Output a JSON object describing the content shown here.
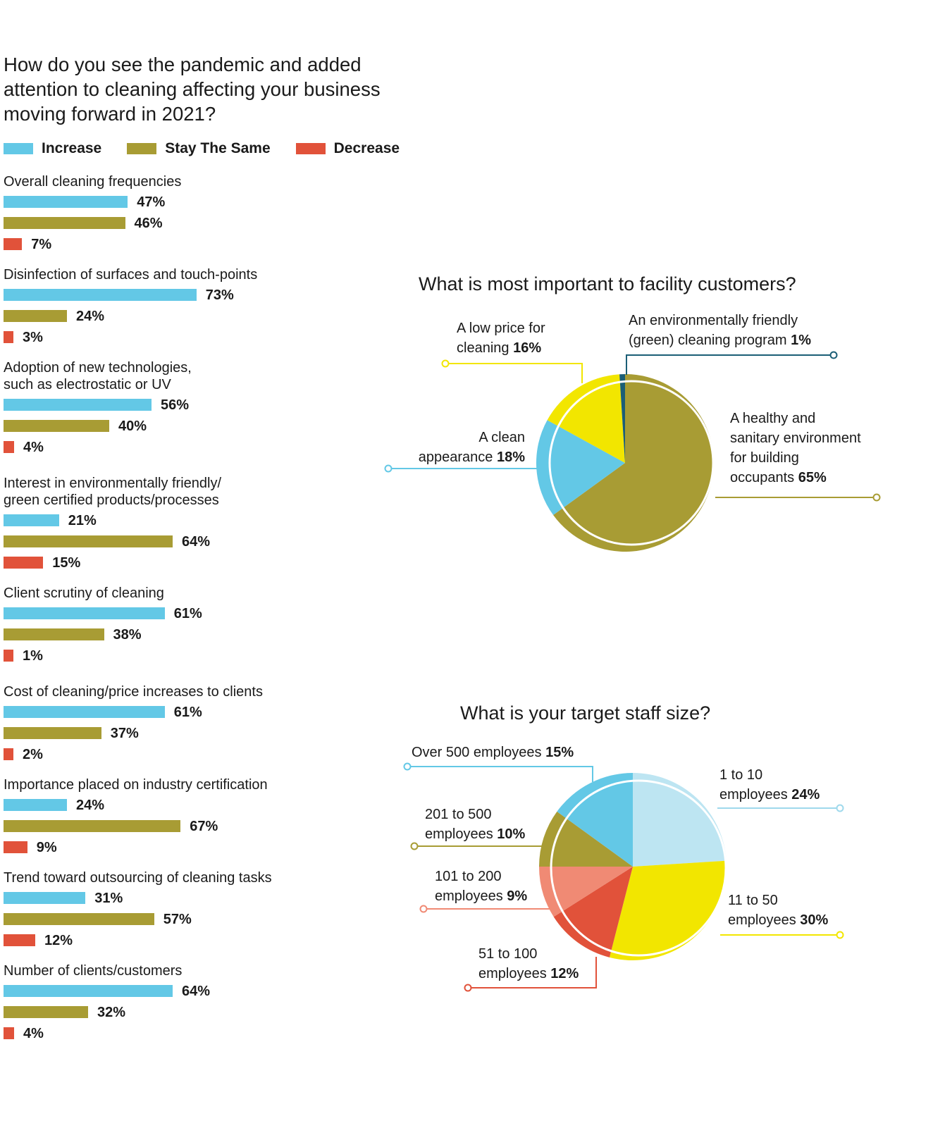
{
  "chart_data": [
    {
      "type": "bar",
      "title": "How do you see the pandemic and added attention to cleaning affecting your business moving forward in 2021?",
      "legend": [
        {
          "label": "Increase",
          "color": "#63c8e6"
        },
        {
          "label": "Stay The Same",
          "color": "#a89c34"
        },
        {
          "label": "Decrease",
          "color": "#e1523a"
        }
      ],
      "legend_placement": "top-left",
      "orientation": "horizontal",
      "categories": [
        "Overall cleaning frequencies",
        "Disinfection of surfaces and touch-points",
        "Adoption of new technologies,\nsuch as electrostatic or UV",
        "Interest in environmentally friendly/\ngreen certified products/processes",
        "Client scrutiny of cleaning",
        "Cost of cleaning/price increases to clients",
        "Importance placed on industry certification",
        "Trend toward outsourcing of cleaning tasks",
        "Number of clients/customers"
      ],
      "series": [
        {
          "name": "Increase",
          "values": [
            47,
            73,
            56,
            21,
            61,
            61,
            24,
            31,
            64
          ]
        },
        {
          "name": "Stay The Same",
          "values": [
            46,
            24,
            40,
            64,
            38,
            37,
            67,
            57,
            32
          ]
        },
        {
          "name": "Decrease",
          "values": [
            7,
            3,
            4,
            15,
            1,
            2,
            9,
            12,
            4
          ]
        }
      ],
      "value_suffix": "%",
      "grid": false
    },
    {
      "type": "pie",
      "title": "What is most important to facility customers?",
      "slices": [
        {
          "label_lines": [
            "A healthy and",
            "sanitary environment",
            "for building",
            "occupants"
          ],
          "value": 65,
          "color": "#a89c34"
        },
        {
          "label_lines": [
            "A clean",
            "appearance"
          ],
          "value": 18,
          "color": "#63c8e6"
        },
        {
          "label_lines": [
            "A low price for",
            "cleaning"
          ],
          "value": 16,
          "color": "#f2e600"
        },
        {
          "label_lines": [
            "An environmentally friendly",
            "(green) cleaning program"
          ],
          "value": 1,
          "color": "#1b5e76"
        }
      ]
    },
    {
      "type": "pie",
      "title": "What is your target staff size?",
      "slices": [
        {
          "label_lines": [
            "1 to 10",
            "employees"
          ],
          "value": 24,
          "color": "#bde5f2"
        },
        {
          "label_lines": [
            "11 to 50",
            "employees"
          ],
          "value": 30,
          "color": "#f2e600"
        },
        {
          "label_lines": [
            "51 to 100",
            "employees"
          ],
          "value": 12,
          "color": "#e1523a"
        },
        {
          "label_lines": [
            "101 to 200",
            "employees"
          ],
          "value": 9,
          "color": "#f08a74"
        },
        {
          "label_lines": [
            "201 to 500",
            "employees"
          ],
          "value": 10,
          "color": "#a89c34"
        },
        {
          "label_lines": [
            "Over 500 employees"
          ],
          "value": 15,
          "color": "#63c8e6"
        }
      ]
    }
  ]
}
